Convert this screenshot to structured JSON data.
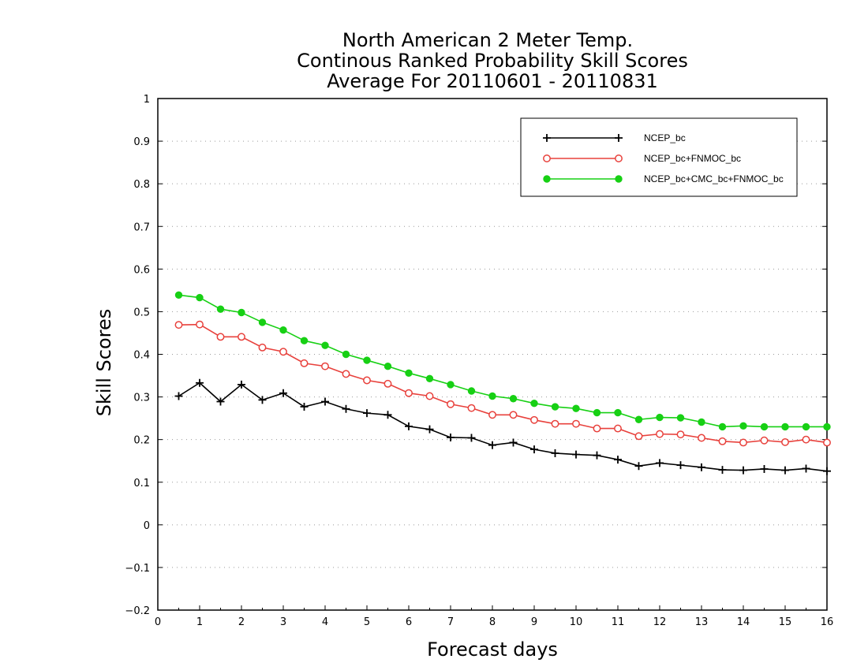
{
  "chart_data": {
    "type": "line",
    "title": [
      "North American 2 Meter Temp.",
      "Continous Ranked Probability Skill Scores",
      "Average For 20110601 - 20110831"
    ],
    "xlabel": "Forecast days",
    "ylabel": "Skill Scores",
    "xlim": [
      0,
      16
    ],
    "ylim": [
      -0.2,
      1
    ],
    "x_ticks": [
      "0",
      "1",
      "2",
      "3",
      "4",
      "5",
      "6",
      "7",
      "8",
      "9",
      "10",
      "11",
      "12",
      "13",
      "14",
      "15",
      "16"
    ],
    "y_ticks": [
      "1",
      "0.9",
      "0.8",
      "0.7",
      "0.6",
      "0.5",
      "0.4",
      "0.3",
      "0.2",
      "0.1",
      "0",
      "-0.1",
      "-0.2"
    ],
    "grid": "horizontal-dotted",
    "legend_position": "top-right",
    "x": [
      0.5,
      1,
      1.5,
      2,
      2.5,
      3,
      3.5,
      4,
      4.5,
      5,
      5.5,
      6,
      6.5,
      7,
      7.5,
      8,
      8.5,
      9,
      9.5,
      10,
      10.5,
      11,
      11.5,
      12,
      12.5,
      13,
      13.5,
      14,
      14.5,
      15,
      15.5,
      16
    ],
    "series": [
      {
        "name": "NCEP_bc",
        "color": "#000000",
        "marker": "plus",
        "values": [
          0.302,
          0.333,
          0.289,
          0.329,
          0.293,
          0.309,
          0.277,
          0.289,
          0.272,
          0.262,
          0.258,
          0.231,
          0.224,
          0.205,
          0.204,
          0.187,
          0.193,
          0.177,
          0.168,
          0.165,
          0.163,
          0.153,
          0.138,
          0.145,
          0.14,
          0.135,
          0.129,
          0.128,
          0.131,
          0.128,
          0.132,
          0.126
        ]
      },
      {
        "name": "NCEP_bc+FNMOC_bc",
        "color": "#e8413c",
        "marker": "open-circle",
        "values": [
          0.469,
          0.47,
          0.441,
          0.441,
          0.416,
          0.406,
          0.379,
          0.372,
          0.354,
          0.339,
          0.331,
          0.309,
          0.302,
          0.283,
          0.274,
          0.258,
          0.258,
          0.246,
          0.237,
          0.237,
          0.226,
          0.226,
          0.208,
          0.213,
          0.212,
          0.204,
          0.196,
          0.193,
          0.198,
          0.194,
          0.2,
          0.193
        ]
      },
      {
        "name": "NCEP_bc+CMC_bc+FNMOC_bc",
        "color": "#17d014",
        "marker": "filled-circle",
        "values": [
          0.539,
          0.533,
          0.506,
          0.498,
          0.475,
          0.457,
          0.432,
          0.421,
          0.4,
          0.386,
          0.372,
          0.356,
          0.343,
          0.329,
          0.314,
          0.302,
          0.296,
          0.285,
          0.277,
          0.273,
          0.263,
          0.263,
          0.247,
          0.252,
          0.251,
          0.241,
          0.23,
          0.232,
          0.23,
          0.23,
          0.23,
          0.23
        ]
      }
    ]
  }
}
